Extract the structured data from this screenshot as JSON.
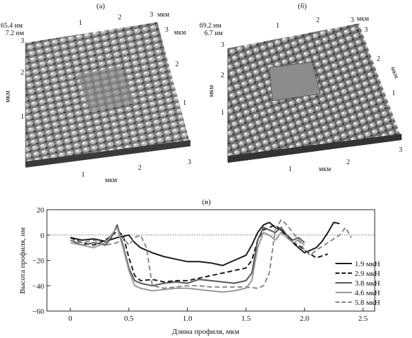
{
  "panel_a": {
    "tag": "(а)",
    "z_max": "65.4 нм",
    "z_min": "7.2 нм",
    "unit": "мкм",
    "ticks": [
      "1",
      "2",
      "3"
    ]
  },
  "panel_b": {
    "tag": "(б)",
    "z_max": "69.2 нм",
    "z_min": "6.7 нм",
    "unit": "мкм",
    "ticks": [
      "1",
      "2",
      "3"
    ]
  },
  "panel_c_tag": "(в)",
  "chart_data": {
    "type": "line",
    "title": "",
    "xlabel": "Длина профиля, мкм",
    "ylabel": "Высота профиля, нм",
    "xlim": [
      -0.2,
      2.6
    ],
    "ylim": [
      -60,
      20
    ],
    "xticks": [
      0,
      0.5,
      1.0,
      1.5,
      2.0,
      2.5
    ],
    "xtick_labels": [
      "0",
      "0.5",
      "1.0",
      "1.5",
      "2.0",
      "2.5"
    ],
    "yticks": [
      -60,
      -40,
      -20,
      0,
      20
    ],
    "ytick_labels": [
      "−60",
      "−40",
      "−20",
      "0",
      "20"
    ],
    "zero_line": true,
    "legend_position": "right",
    "series": [
      {
        "name": "1.9 мкН",
        "color": "#1a1a1a",
        "dash": "solid",
        "x": [
          0,
          0.1,
          0.2,
          0.3,
          0.4,
          0.45,
          0.5,
          0.55,
          0.6,
          0.7,
          0.8,
          0.9,
          1.0,
          1.1,
          1.2,
          1.3,
          1.4,
          1.5,
          1.55,
          1.6,
          1.65,
          1.7,
          1.75,
          1.8,
          1.85,
          1.9,
          1.95,
          2.0,
          2.05,
          2.1,
          2.15,
          2.2,
          2.25,
          2.3
        ],
        "y": [
          -2,
          -4,
          -3,
          -5,
          -2,
          -1,
          0,
          -6,
          -10,
          -14,
          -17,
          -19,
          -21,
          -21,
          -22,
          -24,
          -20,
          -16,
          -8,
          2,
          8,
          10,
          6,
          4,
          0,
          -6,
          -10,
          -14,
          -12,
          -10,
          -5,
          2,
          10,
          9
        ]
      },
      {
        "name": "2.9 мкН",
        "color": "#1a1a1a",
        "dash": "dashed",
        "x": [
          0,
          0.1,
          0.2,
          0.3,
          0.4,
          0.45,
          0.5,
          0.55,
          0.6,
          0.7,
          0.8,
          0.9,
          1.0,
          1.1,
          1.2,
          1.3,
          1.4,
          1.5,
          1.55,
          1.6,
          1.65,
          1.7,
          1.75,
          1.8,
          1.85,
          1.9,
          1.95,
          2.0,
          2.1,
          2.2
        ],
        "y": [
          -2,
          -6,
          -8,
          -4,
          3,
          0,
          -18,
          -32,
          -36,
          -35,
          -37,
          -36,
          -36,
          -34,
          -32,
          -30,
          -28,
          -26,
          -20,
          -4,
          4,
          6,
          8,
          4,
          -2,
          -6,
          -8,
          -12,
          -18,
          -15
        ]
      },
      {
        "name": "3.8 мкН",
        "color": "#555555",
        "dash": "solid",
        "x": [
          0,
          0.1,
          0.2,
          0.3,
          0.35,
          0.4,
          0.45,
          0.5,
          0.55,
          0.6,
          0.7,
          0.8,
          0.9,
          1.0,
          1.1,
          1.2,
          1.3,
          1.4,
          1.5,
          1.55,
          1.6,
          1.65,
          1.7,
          1.75,
          1.8,
          1.85,
          1.9,
          1.95,
          2.0
        ],
        "y": [
          -4,
          -8,
          -6,
          -8,
          -2,
          8,
          -8,
          -26,
          -36,
          -38,
          -40,
          -38,
          -37,
          -38,
          -35,
          -36,
          -37,
          -38,
          -36,
          -30,
          -4,
          6,
          4,
          2,
          6,
          0,
          -4,
          -2,
          -6
        ]
      },
      {
        "name": "4.6 мкН",
        "color": "#999999",
        "dash": "solid",
        "x": [
          0,
          0.1,
          0.2,
          0.3,
          0.35,
          0.4,
          0.45,
          0.5,
          0.55,
          0.6,
          0.7,
          0.8,
          0.9,
          1.0,
          1.1,
          1.2,
          1.3,
          1.4,
          1.5,
          1.55,
          1.6,
          1.65,
          1.7,
          1.75,
          1.8,
          1.85,
          1.9,
          1.95,
          2.0
        ],
        "y": [
          -6,
          -8,
          -10,
          -6,
          0,
          6,
          -10,
          -28,
          -40,
          -42,
          -44,
          -43,
          -42,
          -42,
          -43,
          -44,
          -45,
          -44,
          -42,
          -36,
          -10,
          2,
          0,
          -4,
          2,
          -2,
          -6,
          -4,
          -8
        ]
      },
      {
        "name": "5.8 мкН",
        "color": "#888888",
        "dash": "dashed",
        "x": [
          0,
          0.1,
          0.2,
          0.3,
          0.4,
          0.45,
          0.5,
          0.55,
          0.6,
          0.65,
          0.7,
          0.8,
          0.9,
          1.0,
          1.1,
          1.2,
          1.3,
          1.4,
          1.5,
          1.6,
          1.65,
          1.7,
          1.75,
          1.8,
          1.85,
          1.9,
          1.95,
          2.0,
          2.05,
          2.1,
          2.2,
          2.3,
          2.35,
          2.4
        ],
        "y": [
          -4,
          -6,
          -4,
          -8,
          -6,
          -2,
          -8,
          -2,
          0,
          -10,
          -40,
          -42,
          -41,
          -40,
          -40,
          -41,
          -41,
          -41,
          -41,
          -42,
          -40,
          -30,
          4,
          12,
          8,
          2,
          -4,
          -12,
          -16,
          -12,
          -6,
          0,
          6,
          -2
        ]
      }
    ]
  }
}
